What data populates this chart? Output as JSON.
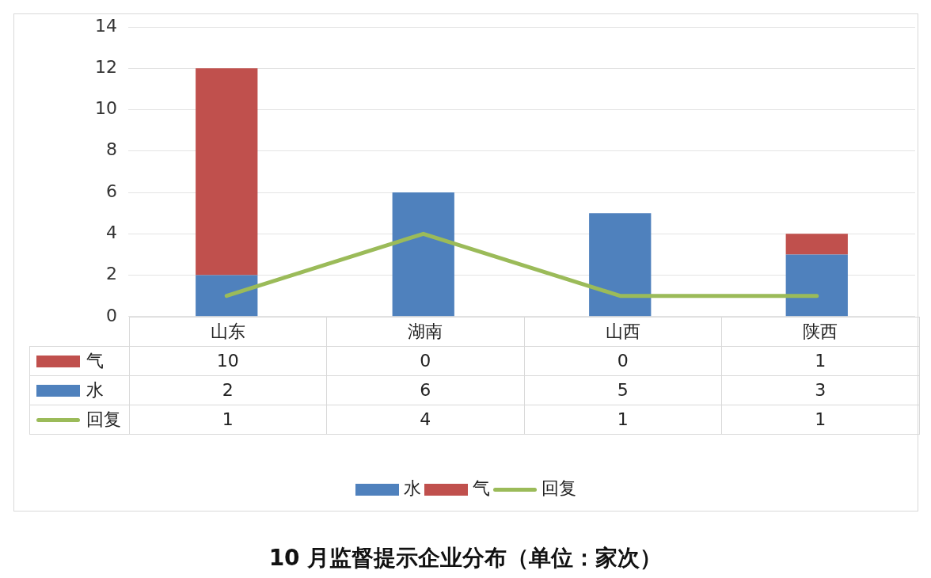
{
  "chart_data": {
    "type": "bar",
    "title": "10 月监督提示企业分布（单位：家次）",
    "categories": [
      "山东",
      "湖南",
      "山西",
      "陕西"
    ],
    "stacked": true,
    "series": [
      {
        "name": "水",
        "color": "#4f81bd",
        "values": [
          2,
          6,
          5,
          3
        ]
      },
      {
        "name": "气",
        "color": "#c0504d",
        "values": [
          10,
          0,
          0,
          1
        ]
      },
      {
        "name": "回复",
        "type": "line",
        "color": "#9bbb59",
        "values": [
          1,
          4,
          1,
          1
        ]
      }
    ],
    "ylim": [
      0,
      14
    ],
    "yticks": [
      0,
      2,
      4,
      6,
      8,
      10,
      12,
      14
    ],
    "grid": "y",
    "legend": "bottom",
    "data_labels": true,
    "marker": "none",
    "line_style": "solid"
  }
}
